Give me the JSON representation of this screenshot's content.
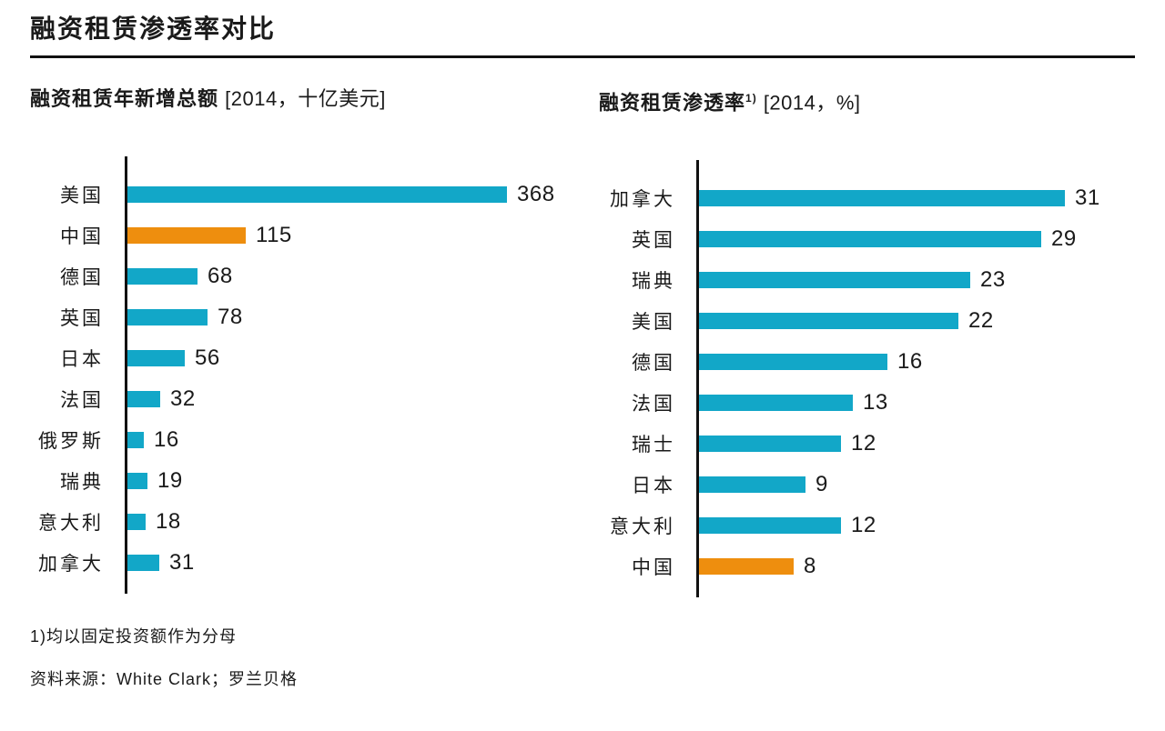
{
  "header": {
    "title": "融资租赁渗透率对比"
  },
  "colors": {
    "bar": "#12A7C8",
    "highlight": "#EE8E0E",
    "axis": "#111111",
    "text": "#1a1a1a"
  },
  "chart_data": [
    {
      "type": "bar",
      "orientation": "horizontal",
      "title": "融资租赁年新增总额",
      "unit_label": "[2014，十亿美元]",
      "categories": [
        "美国",
        "中国",
        "德国",
        "英国",
        "日本",
        "法国",
        "俄罗斯",
        "瑞典",
        "意大利",
        "加拿大"
      ],
      "values": [
        368,
        115,
        68,
        78,
        56,
        32,
        16,
        19,
        18,
        31
      ],
      "highlight_index": 1,
      "highlight_category": "中国",
      "xlim": [
        0,
        368
      ],
      "grid": false,
      "legend": false
    },
    {
      "type": "bar",
      "orientation": "horizontal",
      "title": "融资租赁渗透率",
      "superscript": "1)",
      "unit_label": "[2014，%]",
      "categories": [
        "加拿大",
        "英国",
        "瑞典",
        "美国",
        "德国",
        "法国",
        "瑞士",
        "日本",
        "意大利",
        "中国"
      ],
      "values": [
        31,
        29,
        23,
        22,
        16,
        13,
        12,
        9,
        12,
        8
      ],
      "highlight_index": 9,
      "highlight_category": "中国",
      "xlim": [
        0,
        31
      ],
      "grid": false,
      "legend": false
    }
  ],
  "footer": {
    "footnote": "1)均以固定投资额作为分母",
    "source": "资料来源：White Clark；罗兰贝格"
  }
}
